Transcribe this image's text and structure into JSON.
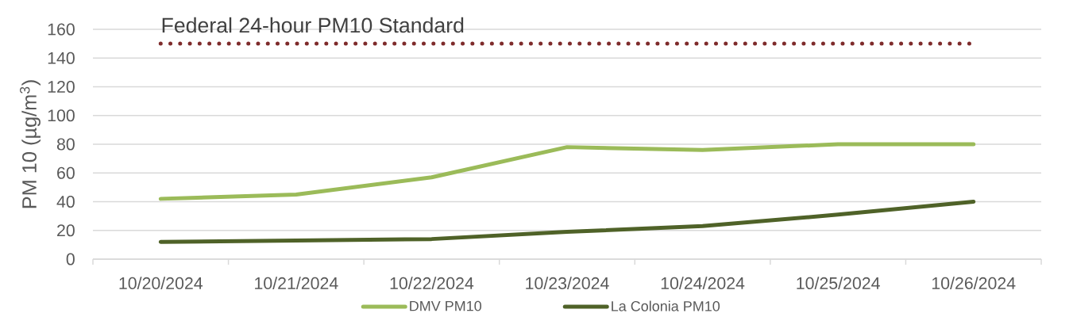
{
  "chart_data": {
    "type": "line",
    "ylabel": "PM 10 (µg/m$^{3}$)",
    "categories": [
      "10/20/2024",
      "10/21/2024",
      "10/22/2024",
      "10/23/2024",
      "10/24/2024",
      "10/25/2024",
      "10/26/2024"
    ],
    "series": [
      {
        "name": "DMV PM10",
        "color": "#9bbb59",
        "values": [
          42,
          45,
          57,
          78,
          76,
          80,
          80
        ]
      },
      {
        "name": "La Colonia PM10",
        "color": "#4f6228",
        "values": [
          12,
          13,
          14,
          19,
          23,
          31,
          40
        ]
      }
    ],
    "ylim": [
      0,
      160
    ],
    "yticks": [
      0,
      20,
      40,
      60,
      80,
      100,
      120,
      140,
      160
    ],
    "grid": "y",
    "legend": "bottom",
    "ref_lines": [
      {
        "axis": "y",
        "value": 150,
        "label": "Federal 24-hour PM10 Standard",
        "color": "#7e2b2b",
        "line_style": "dotted"
      }
    ]
  }
}
